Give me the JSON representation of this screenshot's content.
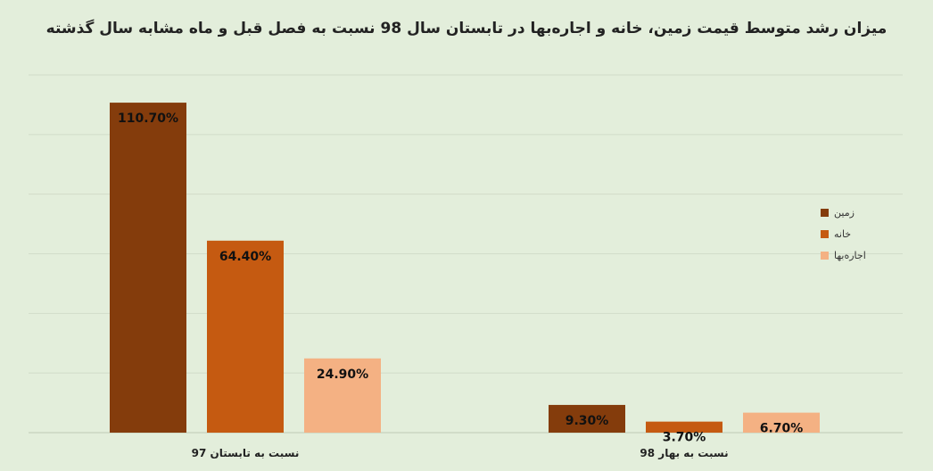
{
  "chart_data": {
    "type": "bar",
    "title": "میزان رشد متوسط قیمت زمین، خانه و اجاره‌بها در تابستان سال 98 نسبت به فصل قبل و ماه مشابه سال گذشته",
    "categories": [
      "نسبت به تابستان 97",
      "نسبت به بهار 98"
    ],
    "series": [
      {
        "name": "زمین",
        "color": "#843c0c",
        "values": [
          110.7,
          9.3
        ],
        "labels": [
          "110.70%",
          "9.30%"
        ]
      },
      {
        "name": "خانه",
        "color": "#c55a11",
        "values": [
          64.4,
          3.7
        ],
        "labels": [
          "64.40%",
          "3.70%"
        ]
      },
      {
        "name": "اجاره‌بها",
        "color": "#f4b183",
        "values": [
          24.9,
          6.7
        ],
        "labels": [
          "24.90%",
          "6.70%"
        ]
      }
    ],
    "ylim": [
      0,
      120
    ],
    "grid": true,
    "legend": "right",
    "xlabel": "",
    "ylabel": ""
  }
}
